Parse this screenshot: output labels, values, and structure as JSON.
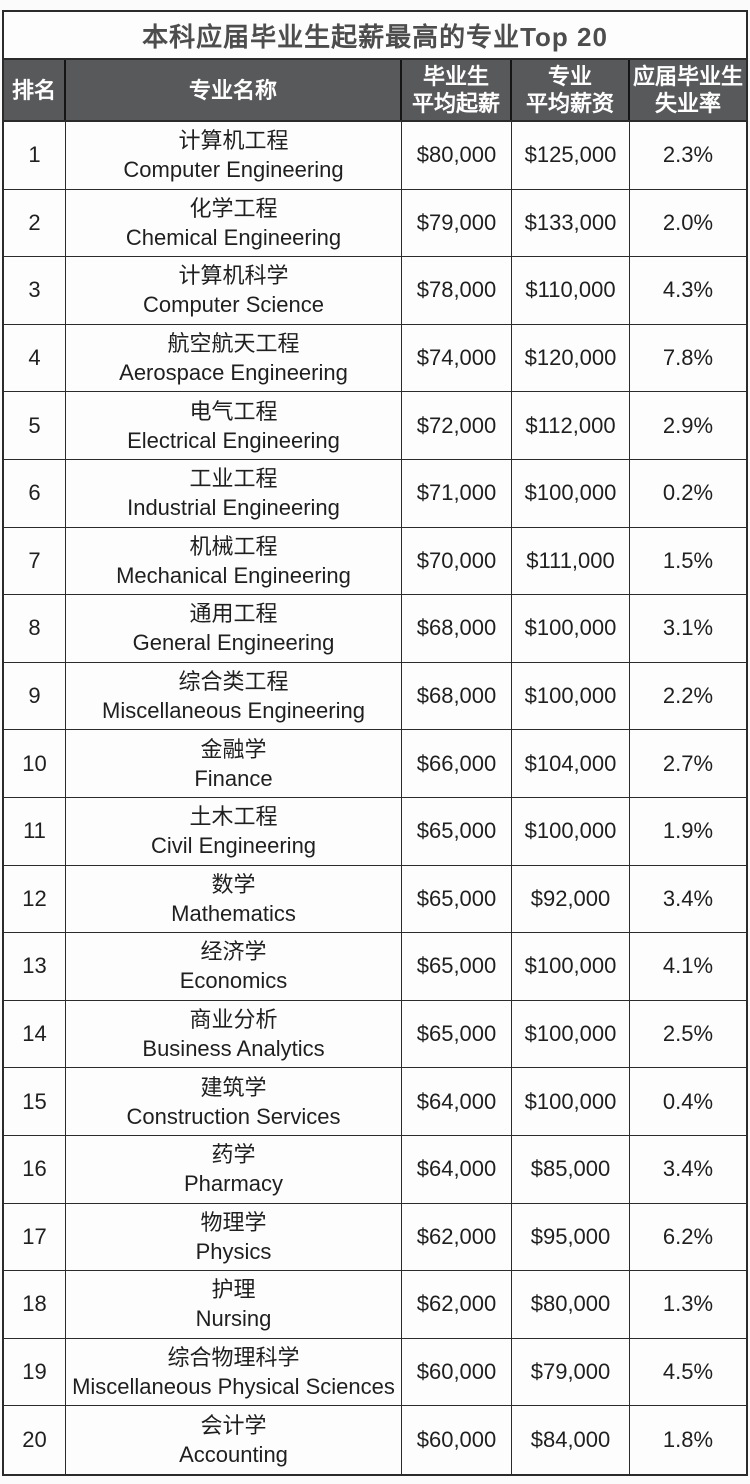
{
  "colors": {
    "page_bg": "#fbfbfb",
    "border": "#2b2b2b",
    "header_bg": "#58595b",
    "header_text": "#ffffff",
    "title_text": "#4d4d4d",
    "body_text": "#1f1f1f"
  },
  "chart_data": {
    "type": "table",
    "title": "本科应届毕业生起薪最高的专业Top 20",
    "columns": [
      "排名",
      "专业名称",
      "毕业生\n平均起薪",
      "专业\n平均薪资",
      "应届毕业生\n失业率"
    ],
    "rows": [
      {
        "rank": "1",
        "major_zh": "计算机工程",
        "major_en": "Computer Engineering",
        "starting_salary": "$80,000",
        "average_salary": "$125,000",
        "unemployment_rate": "2.3%"
      },
      {
        "rank": "2",
        "major_zh": "化学工程",
        "major_en": "Chemical Engineering",
        "starting_salary": "$79,000",
        "average_salary": "$133,000",
        "unemployment_rate": "2.0%"
      },
      {
        "rank": "3",
        "major_zh": "计算机科学",
        "major_en": "Computer Science",
        "starting_salary": "$78,000",
        "average_salary": "$110,000",
        "unemployment_rate": "4.3%"
      },
      {
        "rank": "4",
        "major_zh": "航空航天工程",
        "major_en": "Aerospace Engineering",
        "starting_salary": "$74,000",
        "average_salary": "$120,000",
        "unemployment_rate": "7.8%"
      },
      {
        "rank": "5",
        "major_zh": "电气工程",
        "major_en": "Electrical Engineering",
        "starting_salary": "$72,000",
        "average_salary": "$112,000",
        "unemployment_rate": "2.9%"
      },
      {
        "rank": "6",
        "major_zh": "工业工程",
        "major_en": "Industrial Engineering",
        "starting_salary": "$71,000",
        "average_salary": "$100,000",
        "unemployment_rate": "0.2%"
      },
      {
        "rank": "7",
        "major_zh": "机械工程",
        "major_en": "Mechanical Engineering",
        "starting_salary": "$70,000",
        "average_salary": "$111,000",
        "unemployment_rate": "1.5%"
      },
      {
        "rank": "8",
        "major_zh": "通用工程",
        "major_en": "General Engineering",
        "starting_salary": "$68,000",
        "average_salary": "$100,000",
        "unemployment_rate": "3.1%"
      },
      {
        "rank": "9",
        "major_zh": "综合类工程",
        "major_en": "Miscellaneous Engineering",
        "starting_salary": "$68,000",
        "average_salary": "$100,000",
        "unemployment_rate": "2.2%"
      },
      {
        "rank": "10",
        "major_zh": "金融学",
        "major_en": "Finance",
        "starting_salary": "$66,000",
        "average_salary": "$104,000",
        "unemployment_rate": "2.7%"
      },
      {
        "rank": "11",
        "major_zh": "土木工程",
        "major_en": "Civil Engineering",
        "starting_salary": "$65,000",
        "average_salary": "$100,000",
        "unemployment_rate": "1.9%"
      },
      {
        "rank": "12",
        "major_zh": "数学",
        "major_en": "Mathematics",
        "starting_salary": "$65,000",
        "average_salary": "$92,000",
        "unemployment_rate": "3.4%"
      },
      {
        "rank": "13",
        "major_zh": "经济学",
        "major_en": "Economics",
        "starting_salary": "$65,000",
        "average_salary": "$100,000",
        "unemployment_rate": "4.1%"
      },
      {
        "rank": "14",
        "major_zh": "商业分析",
        "major_en": "Business Analytics",
        "starting_salary": "$65,000",
        "average_salary": "$100,000",
        "unemployment_rate": "2.5%"
      },
      {
        "rank": "15",
        "major_zh": "建筑学",
        "major_en": "Construction Services",
        "starting_salary": "$64,000",
        "average_salary": "$100,000",
        "unemployment_rate": "0.4%"
      },
      {
        "rank": "16",
        "major_zh": "药学",
        "major_en": "Pharmacy",
        "starting_salary": "$64,000",
        "average_salary": "$85,000",
        "unemployment_rate": "3.4%"
      },
      {
        "rank": "17",
        "major_zh": "物理学",
        "major_en": "Physics",
        "starting_salary": "$62,000",
        "average_salary": "$95,000",
        "unemployment_rate": "6.2%"
      },
      {
        "rank": "18",
        "major_zh": "护理",
        "major_en": "Nursing",
        "starting_salary": "$62,000",
        "average_salary": "$80,000",
        "unemployment_rate": "1.3%"
      },
      {
        "rank": "19",
        "major_zh": "综合物理科学",
        "major_en": "Miscellaneous Physical Sciences",
        "starting_salary": "$60,000",
        "average_salary": "$79,000",
        "unemployment_rate": "4.5%"
      },
      {
        "rank": "20",
        "major_zh": "会计学",
        "major_en": "Accounting",
        "starting_salary": "$60,000",
        "average_salary": "$84,000",
        "unemployment_rate": "1.8%"
      }
    ]
  }
}
